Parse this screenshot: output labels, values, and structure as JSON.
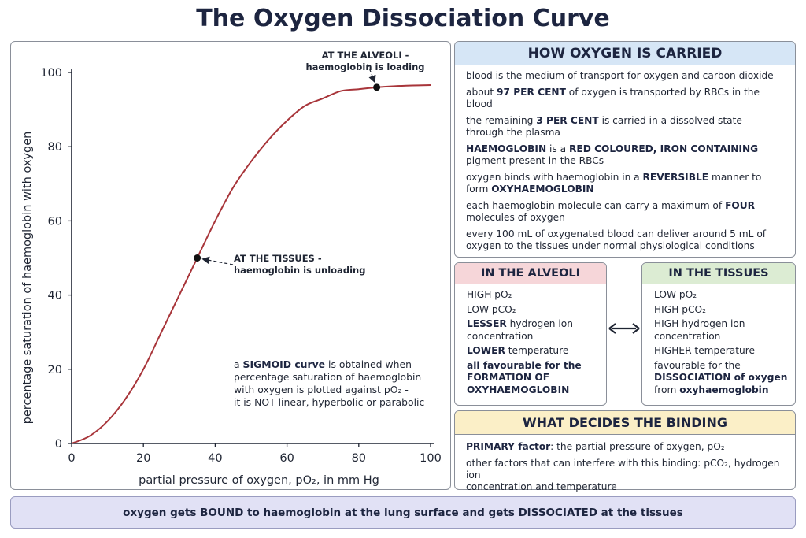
{
  "title": "The Oxygen Dissociation Curve",
  "chart_data": {
    "type": "line",
    "xlabel": "partial pressure of oxygen,  pO₂, in mm Hg",
    "ylabel": "percentage saturation of haemoglobin with oxygen",
    "xlim": [
      0,
      100
    ],
    "ylim": [
      0,
      100
    ],
    "x_ticks": [
      0,
      20,
      40,
      60,
      80,
      100
    ],
    "y_ticks": [
      0,
      20,
      40,
      60,
      80,
      100
    ],
    "grid": false,
    "curve_color": "#a8353a",
    "series": [
      {
        "x": [
          0,
          5,
          10,
          15,
          20,
          25,
          30,
          35,
          40,
          45,
          50,
          55,
          60,
          65,
          70,
          75,
          80,
          85,
          90,
          95,
          100
        ],
        "y": [
          0,
          2,
          6,
          12,
          20,
          30,
          40,
          50,
          60,
          69,
          76,
          82,
          87,
          91,
          93,
          95,
          95.5,
          96,
          96.3,
          96.5,
          96.6
        ]
      }
    ],
    "points": [
      {
        "x": 85,
        "y": 96,
        "label": "AT THE ALVEOLI -\nhaemoglobin is loading"
      },
      {
        "x": 35,
        "y": 50,
        "label": "AT THE TISSUES -\nhaemoglobin is unloading"
      }
    ]
  },
  "annotations": {
    "alveoli": [
      "AT THE ALVEOLI -",
      "haemoglobin is loading"
    ],
    "tissues": [
      "AT THE TISSUES -",
      "haemoglobin is unloading"
    ]
  },
  "chart_note": [
    [
      {
        "t": "a "
      },
      {
        "t": "SIGMOID curve",
        "b": true
      },
      {
        "t": " is obtained when"
      }
    ],
    [
      {
        "t": "percentage saturation of haemoglobin"
      }
    ],
    [
      {
        "t": "with oxygen is plotted against pO₂ -"
      }
    ],
    [
      {
        "t": "it is NOT linear, hyperbolic or parabolic"
      }
    ]
  ],
  "how_carried": {
    "heading": "HOW OXYGEN IS CARRIED",
    "lines": [
      [
        {
          "t": "blood is the medium of transport for oxygen and carbon dioxide"
        }
      ],
      [
        {
          "t": "about "
        },
        {
          "t": "97 PER CENT",
          "b": true
        },
        {
          "t": " of oxygen is transported by RBCs in the blood"
        }
      ],
      [
        {
          "t": "the remaining "
        },
        {
          "t": "3 PER CENT",
          "b": true
        },
        {
          "t": " is carried in a dissolved state"
        },
        {
          "br": true
        },
        {
          "t": "through the plasma"
        }
      ],
      [
        {
          "t": "HAEMOGLOBIN",
          "b": true
        },
        {
          "t": " is a "
        },
        {
          "t": "RED COLOURED, IRON CONTAINING",
          "b": true
        },
        {
          "br": true
        },
        {
          "t": "pigment present in the RBCs"
        }
      ],
      [
        {
          "t": "oxygen binds with haemoglobin in a "
        },
        {
          "t": "REVERSIBLE",
          "b": true
        },
        {
          "t": " manner to"
        },
        {
          "br": true
        },
        {
          "t": "form "
        },
        {
          "t": "OXYHAEMOGLOBIN",
          "b": true
        }
      ],
      [
        {
          "t": "each haemoglobin molecule can carry a maximum of "
        },
        {
          "t": "FOUR",
          "b": true
        },
        {
          "br": true
        },
        {
          "t": "molecules of oxygen"
        }
      ],
      [
        {
          "t": "every 100 mL of oxygenated blood can deliver around 5 mL of"
        },
        {
          "br": true
        },
        {
          "t": "oxygen to the tissues under normal physiological conditions"
        }
      ]
    ]
  },
  "in_alveoli": {
    "heading": "IN THE ALVEOLI",
    "lines": [
      [
        {
          "t": "HIGH pO₂"
        }
      ],
      [
        {
          "t": "LOW pCO₂"
        }
      ],
      [
        {
          "t": "LESSER",
          "b": true
        },
        {
          "t": " hydrogen ion"
        },
        {
          "br": true
        },
        {
          "t": "concentration"
        }
      ],
      [
        {
          "t": "LOWER",
          "b": true
        },
        {
          "t": " temperature"
        }
      ],
      [
        {
          "t": "all favourable for the",
          "b": true
        },
        {
          "br": true
        },
        {
          "t": "FORMATION OF",
          "b": true
        },
        {
          "br": true
        },
        {
          "t": "OXYHAEMOGLOBIN",
          "b": true
        }
      ]
    ]
  },
  "in_tissues": {
    "heading": "IN THE TISSUES",
    "lines": [
      [
        {
          "t": "LOW pO₂"
        }
      ],
      [
        {
          "t": "HIGH pCO₂"
        }
      ],
      [
        {
          "t": "HIGH hydrogen ion"
        },
        {
          "br": true
        },
        {
          "t": "concentration"
        }
      ],
      [
        {
          "t": "HIGHER temperature"
        }
      ],
      [
        {
          "t": "favourable for the"
        },
        {
          "br": true
        },
        {
          "t": "DISSOCIATION of oxygen",
          "b": true
        },
        {
          "br": true
        },
        {
          "t": "from "
        },
        {
          "t": "oxyhaemoglobin",
          "b": true
        }
      ]
    ]
  },
  "binding": {
    "heading": "WHAT DECIDES THE BINDING",
    "lines": [
      [
        {
          "t": "PRIMARY factor",
          "b": true
        },
        {
          "t": ": the partial pressure of oxygen, pO₂"
        }
      ],
      [
        {
          "t": "other factors that can interfere with this binding: pCO₂, hydrogen ion"
        },
        {
          "br": true
        },
        {
          "t": "concentration and temperature"
        }
      ]
    ]
  },
  "footer": "oxygen gets BOUND to haemoglobin at the lung surface and gets DISSOCIATED at the tissues",
  "icons": {
    "double_arrow": "double-headed-arrow-icon"
  }
}
